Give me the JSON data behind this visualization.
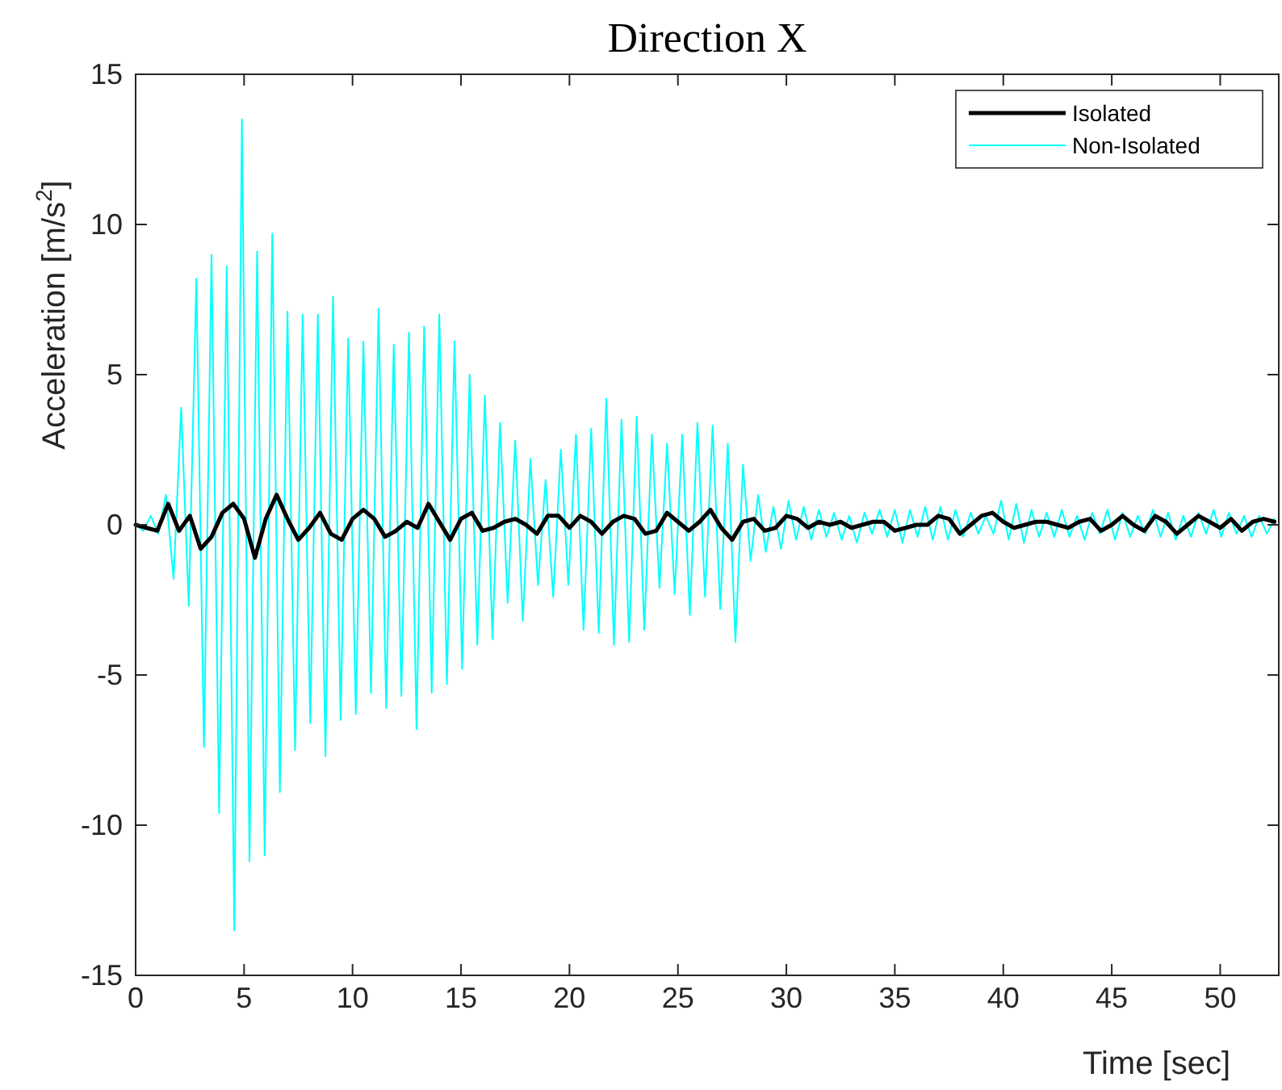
{
  "chart_data": {
    "type": "line",
    "title": "Direction X",
    "xlabel": "Time [sec]",
    "ylabel": "Acceleration [m/s$^{2}$]",
    "xlim": [
      0,
      52.7
    ],
    "ylim": [
      -15,
      15
    ],
    "xticks": [
      0,
      5,
      10,
      15,
      20,
      25,
      30,
      35,
      40,
      45,
      50
    ],
    "yticks": [
      -15,
      -10,
      -5,
      0,
      5,
      10,
      15
    ],
    "legend": "top right",
    "marker": "none",
    "line_style": "solid",
    "series": [
      {
        "name": "Isolated",
        "color": "#000000",
        "x": [
          0,
          0.5,
          1,
          1.5,
          2,
          2.5,
          3,
          3.5,
          4,
          4.5,
          5,
          5.5,
          6,
          6.5,
          7,
          7.5,
          8,
          8.5,
          9,
          9.5,
          10,
          10.5,
          11,
          11.5,
          12,
          12.5,
          13,
          13.5,
          14,
          14.5,
          15,
          15.5,
          16,
          16.5,
          17,
          17.5,
          18,
          18.5,
          19,
          19.5,
          20,
          20.5,
          21,
          21.5,
          22,
          22.5,
          23,
          23.5,
          24,
          24.5,
          25,
          25.5,
          26,
          26.5,
          27,
          27.5,
          28,
          28.5,
          29,
          29.5,
          30,
          30.5,
          31,
          31.5,
          32,
          32.5,
          33,
          33.5,
          34,
          34.5,
          35,
          35.5,
          36,
          36.5,
          37,
          37.5,
          38,
          38.5,
          39,
          39.5,
          40,
          40.5,
          41,
          41.5,
          42,
          42.5,
          43,
          43.5,
          44,
          44.5,
          45,
          45.5,
          46,
          46.5,
          47,
          47.5,
          48,
          48.5,
          49,
          49.5,
          50,
          50.5,
          51,
          51.5,
          52,
          52.5
        ],
        "values": [
          0,
          -0.1,
          -0.2,
          0.7,
          -0.2,
          0.3,
          -0.8,
          -0.4,
          0.4,
          0.7,
          0.2,
          -1.1,
          0.2,
          1.0,
          0.2,
          -0.5,
          -0.1,
          0.4,
          -0.3,
          -0.5,
          0.2,
          0.5,
          0.2,
          -0.4,
          -0.2,
          0.1,
          -0.1,
          0.7,
          0.1,
          -0.5,
          0.2,
          0.4,
          -0.2,
          -0.1,
          0.1,
          0.2,
          0.0,
          -0.3,
          0.3,
          0.3,
          -0.1,
          0.3,
          0.1,
          -0.3,
          0.1,
          0.3,
          0.2,
          -0.3,
          -0.2,
          0.4,
          0.1,
          -0.2,
          0.1,
          0.5,
          -0.1,
          -0.5,
          0.1,
          0.2,
          -0.2,
          -0.1,
          0.3,
          0.2,
          -0.1,
          0.1,
          0.0,
          0.1,
          -0.1,
          0.0,
          0.1,
          0.1,
          -0.2,
          -0.1,
          0.0,
          0.0,
          0.3,
          0.2,
          -0.3,
          0.0,
          0.3,
          0.4,
          0.1,
          -0.1,
          0.0,
          0.1,
          0.1,
          0.0,
          -0.1,
          0.1,
          0.2,
          -0.2,
          0.0,
          0.3,
          0.0,
          -0.2,
          0.3,
          0.1,
          -0.3,
          0.0,
          0.3,
          0.1,
          -0.1,
          0.2,
          -0.2,
          0.1,
          0.2,
          0.1
        ]
      },
      {
        "name": "Non-Isolated",
        "color": "#00ffff",
        "x": [
          0,
          0.35,
          0.7,
          1.05,
          1.4,
          1.75,
          2.1,
          2.45,
          2.8,
          3.15,
          3.5,
          3.85,
          4.2,
          4.55,
          4.9,
          5.25,
          5.6,
          5.95,
          6.3,
          6.65,
          7,
          7.35,
          7.7,
          8.05,
          8.4,
          8.75,
          9.1,
          9.45,
          9.8,
          10.15,
          10.5,
          10.85,
          11.2,
          11.55,
          11.9,
          12.25,
          12.6,
          12.95,
          13.3,
          13.65,
          14,
          14.35,
          14.7,
          15.05,
          15.4,
          15.75,
          16.1,
          16.45,
          16.8,
          17.15,
          17.5,
          17.85,
          18.2,
          18.55,
          18.9,
          19.25,
          19.6,
          19.95,
          20.3,
          20.65,
          21,
          21.35,
          21.7,
          22.05,
          22.4,
          22.75,
          23.1,
          23.45,
          23.8,
          24.15,
          24.5,
          24.85,
          25.2,
          25.55,
          25.9,
          26.25,
          26.6,
          26.95,
          27.3,
          27.65,
          28,
          28.35,
          28.7,
          29.05,
          29.4,
          29.75,
          30.1,
          30.45,
          30.8,
          31.15,
          31.5,
          31.85,
          32.2,
          32.55,
          32.9,
          33.25,
          33.6,
          33.95,
          34.3,
          34.65,
          35,
          35.35,
          35.7,
          36.05,
          36.4,
          36.75,
          37.1,
          37.45,
          37.8,
          38.15,
          38.5,
          38.85,
          39.2,
          39.55,
          39.9,
          40.25,
          40.6,
          40.95,
          41.3,
          41.65,
          42,
          42.35,
          42.7,
          43.05,
          43.4,
          43.75,
          44.1,
          44.45,
          44.8,
          45.15,
          45.5,
          45.85,
          46.2,
          46.55,
          46.9,
          47.25,
          47.6,
          47.95,
          48.3,
          48.65,
          49,
          49.35,
          49.7,
          50.05,
          50.4,
          50.75,
          51.1,
          51.45,
          51.8,
          52.15,
          52.5
        ],
        "values": [
          0,
          -0.2,
          0.3,
          -0.3,
          1.0,
          -1.8,
          3.9,
          -2.7,
          8.2,
          -7.4,
          9.0,
          -9.6,
          8.6,
          -13.5,
          13.5,
          -11.2,
          9.1,
          -11.0,
          9.7,
          -8.9,
          7.1,
          -7.5,
          7.0,
          -6.6,
          7.0,
          -7.7,
          7.6,
          -6.5,
          6.2,
          -6.3,
          6.1,
          -5.6,
          7.2,
          -6.1,
          6.0,
          -5.7,
          6.4,
          -6.8,
          6.6,
          -5.6,
          7.0,
          -5.3,
          6.1,
          -4.8,
          5.0,
          -4.0,
          4.3,
          -3.8,
          3.4,
          -2.6,
          2.8,
          -3.2,
          2.2,
          -2.0,
          1.5,
          -2.4,
          2.5,
          -2.0,
          3.0,
          -3.5,
          3.2,
          -3.6,
          4.2,
          -4.0,
          3.5,
          -3.9,
          3.6,
          -3.5,
          3.0,
          -2.1,
          2.7,
          -2.3,
          3.0,
          -3.0,
          3.4,
          -2.4,
          3.3,
          -2.8,
          2.7,
          -3.9,
          2.0,
          -1.2,
          1.0,
          -0.9,
          0.6,
          -0.8,
          0.8,
          -0.5,
          0.6,
          -0.5,
          0.5,
          -0.4,
          0.4,
          -0.5,
          0.3,
          -0.6,
          0.4,
          -0.3,
          0.5,
          -0.4,
          0.5,
          -0.6,
          0.5,
          -0.4,
          0.6,
          -0.5,
          0.6,
          -0.5,
          0.5,
          -0.4,
          0.4,
          -0.3,
          0.3,
          -0.3,
          0.8,
          -0.5,
          0.7,
          -0.6,
          0.5,
          -0.4,
          0.4,
          -0.4,
          0.5,
          -0.4,
          0.3,
          -0.5,
          0.4,
          -0.3,
          0.5,
          -0.5,
          0.4,
          -0.4,
          0.3,
          -0.3,
          0.5,
          -0.4,
          0.4,
          -0.5,
          0.3,
          -0.4,
          0.4,
          -0.3,
          0.5,
          -0.4,
          0.4,
          -0.3,
          0.3,
          -0.4,
          0.3,
          -0.3,
          0.2
        ]
      }
    ]
  }
}
